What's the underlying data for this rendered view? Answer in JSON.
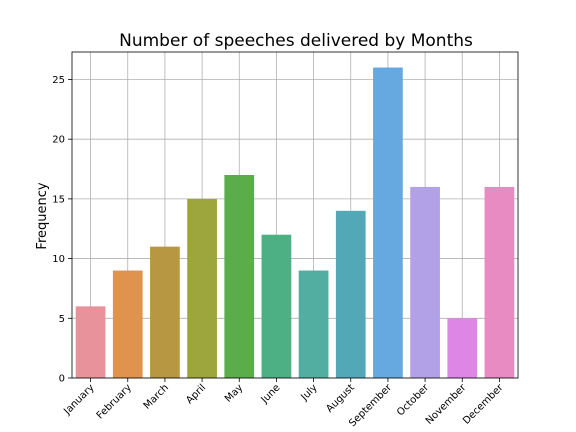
{
  "chart_data": {
    "type": "bar",
    "title": "Number of speeches delivered by Months",
    "xlabel": "",
    "ylabel": "Frequency",
    "categories": [
      "January",
      "February",
      "March",
      "April",
      "May",
      "June",
      "July",
      "August",
      "September",
      "October",
      "November",
      "December"
    ],
    "values": [
      6,
      9,
      11,
      15,
      17,
      12,
      9,
      14,
      26,
      16,
      5,
      16
    ],
    "colors": [
      "#e8929b",
      "#e0924f",
      "#b89742",
      "#9da63c",
      "#5aad4a",
      "#4daf84",
      "#52aea1",
      "#53a8b8",
      "#66a9e0",
      "#b3a1e8",
      "#de86e6",
      "#e78bc2"
    ],
    "ylim": [
      0,
      27.3
    ],
    "yticks": [
      0,
      5,
      10,
      15,
      20,
      25
    ],
    "grid": true,
    "legend": "none"
  }
}
